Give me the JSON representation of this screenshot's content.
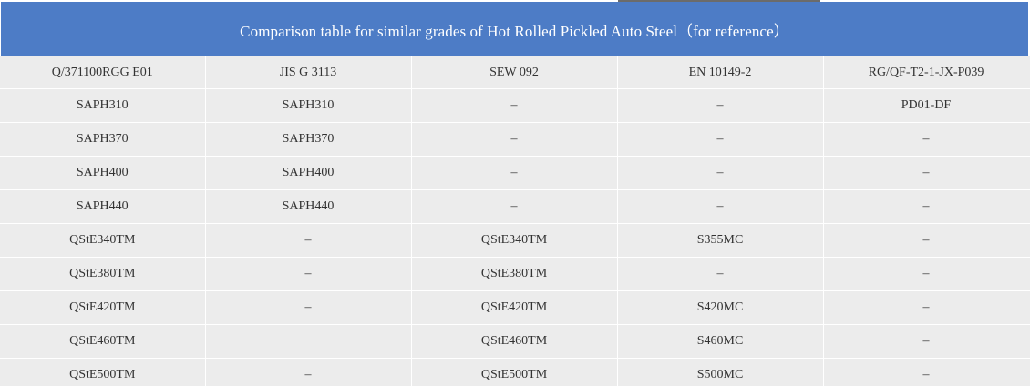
{
  "table": {
    "title": "Comparison table for similar grades of Hot Rolled Pickled Auto Steel（for reference）",
    "headers": [
      "Q/371100RGG E01",
      "JIS G 3113",
      "SEW 092",
      "EN 10149-2",
      "RG/QF-T2-1-JX-P039"
    ],
    "rows": [
      [
        "SAPH310",
        "SAPH310",
        "–",
        "–",
        "PD01-DF"
      ],
      [
        "SAPH370",
        "SAPH370",
        "–",
        "–",
        "–"
      ],
      [
        "SAPH400",
        "SAPH400",
        "–",
        "–",
        "–"
      ],
      [
        "SAPH440",
        "SAPH440",
        "–",
        "–",
        "–"
      ],
      [
        "QStE340TM",
        "–",
        "QStE340TM",
        "S355MC",
        "–"
      ],
      [
        "QStE380TM",
        "–",
        "QStE380TM",
        "–",
        "–"
      ],
      [
        "QStE420TM",
        "–",
        "QStE420TM",
        "S420MC",
        "–"
      ],
      [
        "QStE460TM",
        "",
        "QStE460TM",
        "S460MC",
        "–"
      ],
      [
        "QStE500TM",
        "–",
        "QStE500TM",
        "S500MC",
        "–"
      ]
    ]
  },
  "colors": {
    "title_bar": "#4d7cc6",
    "title_text": "#ffffff",
    "cell_bg": "#ececec",
    "cell_text": "#333333"
  }
}
